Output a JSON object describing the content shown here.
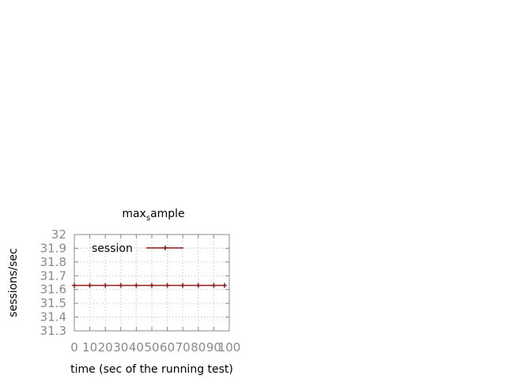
{
  "chart_data": {
    "type": "line",
    "title_main": "max",
    "title_sub": "s",
    "title_rest": "ample",
    "xlabel": "time (sec of the running test)",
    "ylabel": "sessions/sec",
    "xlim": [
      0,
      100
    ],
    "ylim": [
      31.3,
      32
    ],
    "xticks": [
      "0",
      "10",
      "20",
      "30",
      "40",
      "50",
      "60",
      "70",
      "80",
      "90",
      "100"
    ],
    "yticks": [
      "31.3",
      "31.4",
      "31.5",
      "31.6",
      "31.7",
      "31.8",
      "31.9",
      "32"
    ],
    "grid": true,
    "legend_position": "top-left",
    "colors": {
      "series": "#8b1a1a",
      "frame": "#888888",
      "grid": "#bdbdbd"
    },
    "series": [
      {
        "name": "session",
        "x": [
          0,
          10,
          20,
          30,
          40,
          50,
          60,
          70,
          80,
          90,
          97
        ],
        "y": [
          31.63,
          31.63,
          31.63,
          31.63,
          31.63,
          31.63,
          31.63,
          31.63,
          31.63,
          31.63,
          31.63
        ]
      }
    ]
  }
}
